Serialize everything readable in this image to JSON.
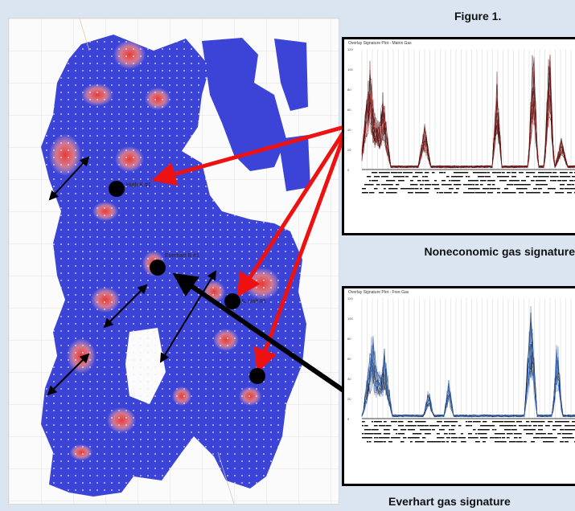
{
  "figure_title": "Figure 1.",
  "wells": [
    {
      "label": "High K #1"
    },
    {
      "label": "Everhart B #1"
    },
    {
      "label": "A. Unit #1"
    },
    {
      "label": ""
    }
  ],
  "plots": {
    "matrix": {
      "title": "Overlay Signature Plot - Matrix Gas",
      "y_ticks": [
        "120",
        "100",
        "80",
        "60",
        "40",
        "20",
        "0"
      ],
      "color": "#8b1a1a"
    },
    "free": {
      "title": "Overlay Signature Plot - Free Gas",
      "y_ticks": [
        "120",
        "100",
        "80",
        "60",
        "40",
        "20",
        "0"
      ],
      "color": "#3a6fc4"
    }
  },
  "captions": {
    "noneconomic": "Noneconomic gas signature",
    "everhart": "Everhart gas signature"
  },
  "colors": {
    "map_fill": "#3c44d8",
    "hotspot": "#e0403a",
    "arrow_red": "#ee1111",
    "arrow_black": "#000000"
  }
}
